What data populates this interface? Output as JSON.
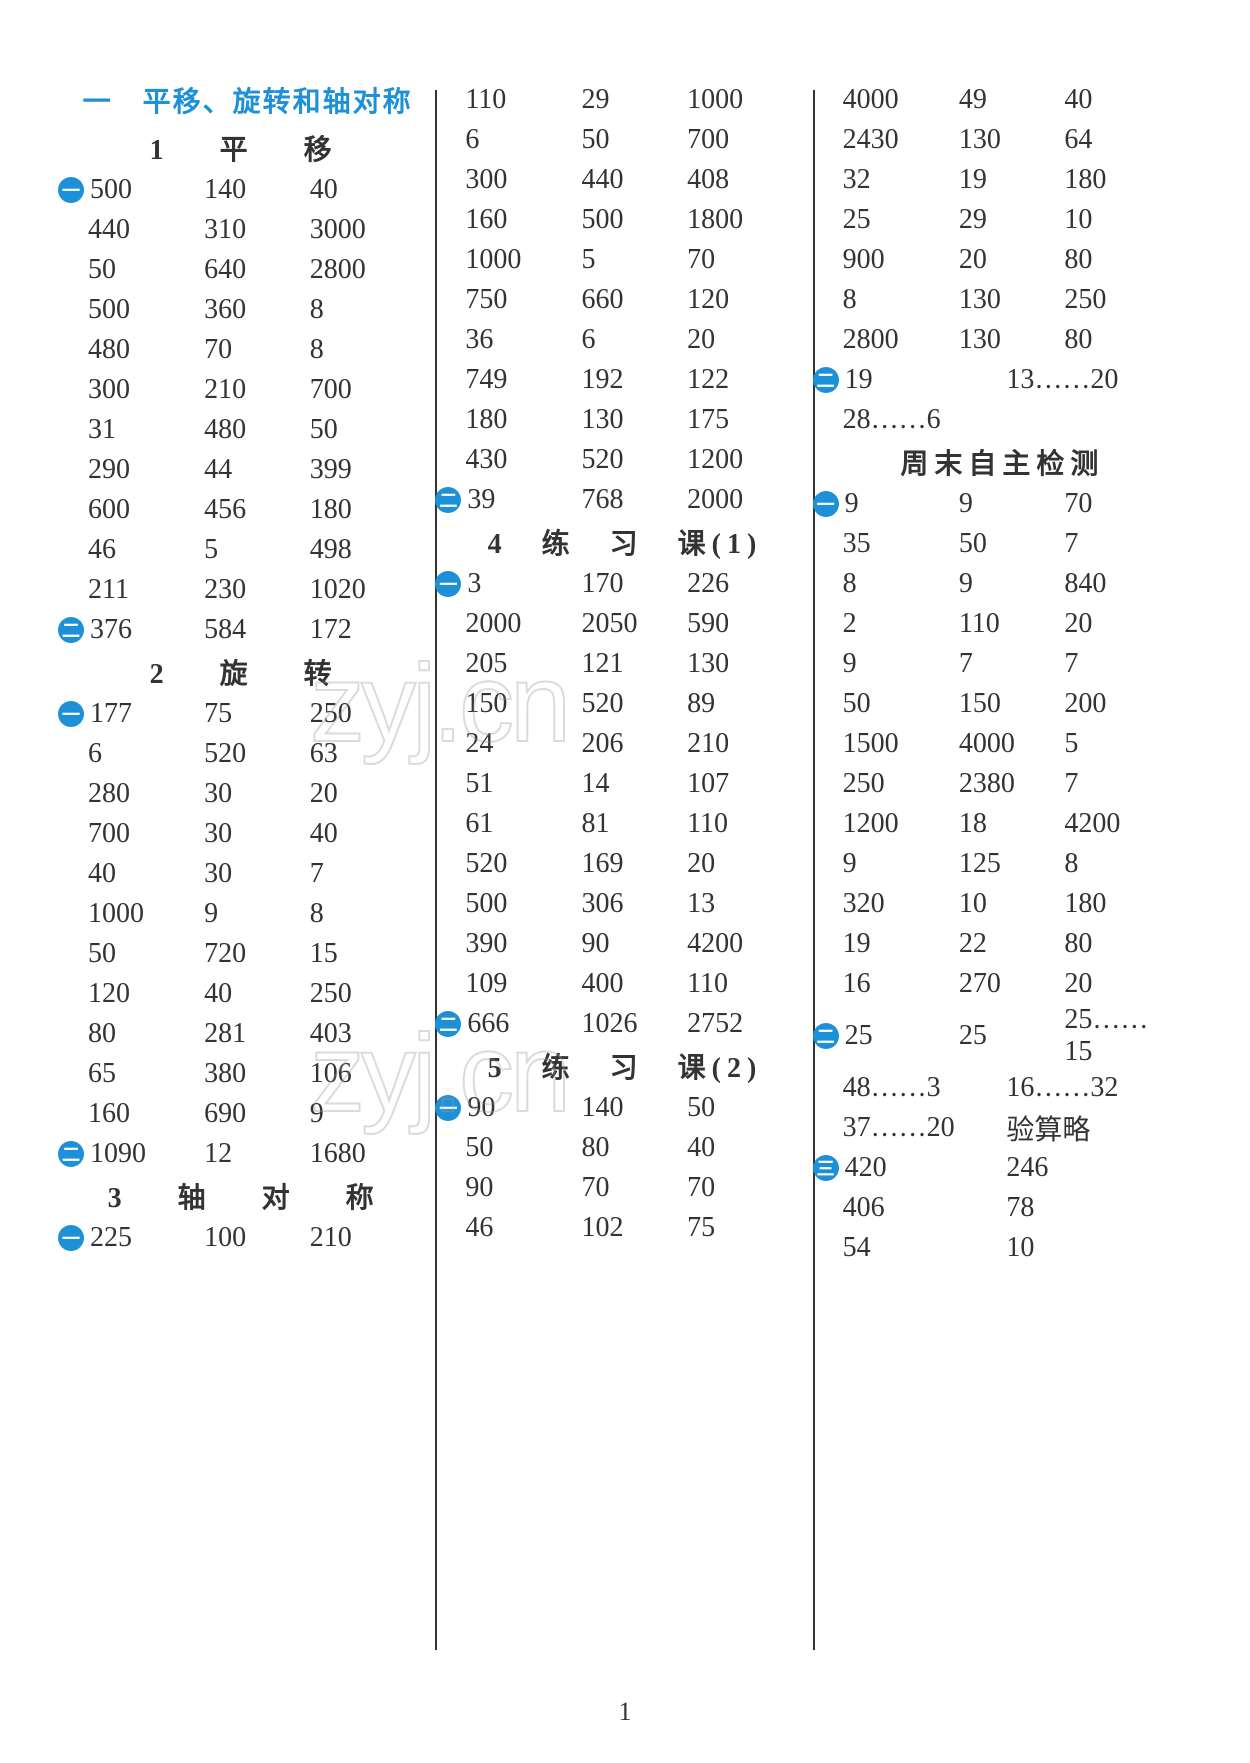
{
  "page_number": "1",
  "watermarks": [
    "zyj.cn",
    "zyj.cn"
  ],
  "columns": [
    {
      "items": [
        {
          "type": "chapter",
          "text": "一　平移、旋转和轴对称"
        },
        {
          "type": "section",
          "text": "1　平　移"
        },
        {
          "type": "row",
          "bullet": "一",
          "cells": [
            "500",
            "140",
            "40"
          ]
        },
        {
          "type": "row",
          "cells": [
            "440",
            "310",
            "3000"
          ]
        },
        {
          "type": "row",
          "cells": [
            "50",
            "640",
            "2800"
          ]
        },
        {
          "type": "row",
          "cells": [
            "500",
            "360",
            "8"
          ]
        },
        {
          "type": "row",
          "cells": [
            "480",
            "70",
            "8"
          ]
        },
        {
          "type": "row",
          "cells": [
            "300",
            "210",
            "700"
          ]
        },
        {
          "type": "row",
          "cells": [
            "31",
            "480",
            "50"
          ]
        },
        {
          "type": "row",
          "cells": [
            "290",
            "44",
            "399"
          ]
        },
        {
          "type": "row",
          "cells": [
            "600",
            "456",
            "180"
          ]
        },
        {
          "type": "row",
          "cells": [
            "46",
            "5",
            "498"
          ]
        },
        {
          "type": "row",
          "cells": [
            "211",
            "230",
            "1020"
          ]
        },
        {
          "type": "row",
          "bullet": "二",
          "cells": [
            "376",
            "584",
            "172"
          ]
        },
        {
          "type": "section",
          "text": "2　旋　转"
        },
        {
          "type": "row",
          "bullet": "一",
          "cells": [
            "177",
            "75",
            "250"
          ]
        },
        {
          "type": "row",
          "cells": [
            "6",
            "520",
            "63"
          ]
        },
        {
          "type": "row",
          "cells": [
            "280",
            "30",
            "20"
          ]
        },
        {
          "type": "row",
          "cells": [
            "700",
            "30",
            "40"
          ]
        },
        {
          "type": "row",
          "cells": [
            "40",
            "30",
            "7"
          ]
        },
        {
          "type": "row",
          "cells": [
            "1000",
            "9",
            "8"
          ]
        },
        {
          "type": "row",
          "cells": [
            "50",
            "720",
            "15"
          ]
        },
        {
          "type": "row",
          "cells": [
            "120",
            "40",
            "250"
          ]
        },
        {
          "type": "row",
          "cells": [
            "80",
            "281",
            "403"
          ]
        },
        {
          "type": "row",
          "cells": [
            "65",
            "380",
            "106"
          ]
        },
        {
          "type": "row",
          "cells": [
            "160",
            "690",
            "9"
          ]
        },
        {
          "type": "row",
          "bullet": "二",
          "cells": [
            "1090",
            "12",
            "1680"
          ]
        },
        {
          "type": "section",
          "text": "3　轴　对　称"
        },
        {
          "type": "row",
          "bullet": "一",
          "cells": [
            "225",
            "100",
            "210"
          ]
        }
      ]
    },
    {
      "items": [
        {
          "type": "row",
          "cells": [
            "110",
            "29",
            "1000"
          ]
        },
        {
          "type": "row",
          "cells": [
            "6",
            "50",
            "700"
          ]
        },
        {
          "type": "row",
          "cells": [
            "300",
            "440",
            "408"
          ]
        },
        {
          "type": "row",
          "cells": [
            "160",
            "500",
            "1800"
          ]
        },
        {
          "type": "row",
          "cells": [
            "1000",
            "5",
            "70"
          ]
        },
        {
          "type": "row",
          "cells": [
            "750",
            "660",
            "120"
          ]
        },
        {
          "type": "row",
          "cells": [
            "36",
            "6",
            "20"
          ]
        },
        {
          "type": "row",
          "cells": [
            "749",
            "192",
            "122"
          ]
        },
        {
          "type": "row",
          "cells": [
            "180",
            "130",
            "175"
          ]
        },
        {
          "type": "row",
          "cells": [
            "430",
            "520",
            "1200"
          ]
        },
        {
          "type": "row",
          "bullet": "二",
          "cells": [
            "39",
            "768",
            "2000"
          ]
        },
        {
          "type": "section-tight",
          "text": "4　练　习　课(1)"
        },
        {
          "type": "row",
          "bullet": "一",
          "cells": [
            "3",
            "170",
            "226"
          ]
        },
        {
          "type": "row",
          "cells": [
            "2000",
            "2050",
            "590"
          ]
        },
        {
          "type": "row",
          "cells": [
            "205",
            "121",
            "130"
          ]
        },
        {
          "type": "row",
          "cells": [
            "150",
            "520",
            "89"
          ]
        },
        {
          "type": "row",
          "cells": [
            "24",
            "206",
            "210"
          ]
        },
        {
          "type": "row",
          "cells": [
            "51",
            "14",
            "107"
          ]
        },
        {
          "type": "row",
          "cells": [
            "61",
            "81",
            "110"
          ]
        },
        {
          "type": "row",
          "cells": [
            "520",
            "169",
            "20"
          ]
        },
        {
          "type": "row",
          "cells": [
            "500",
            "306",
            "13"
          ]
        },
        {
          "type": "row",
          "cells": [
            "390",
            "90",
            "4200"
          ]
        },
        {
          "type": "row",
          "cells": [
            "109",
            "400",
            "110"
          ]
        },
        {
          "type": "row",
          "bullet": "二",
          "cells": [
            "666",
            "1026",
            "2752"
          ]
        },
        {
          "type": "section-tight",
          "text": "5　练　习　课(2)"
        },
        {
          "type": "row",
          "bullet": "一",
          "cells": [
            "90",
            "140",
            "50"
          ]
        },
        {
          "type": "row",
          "cells": [
            "50",
            "80",
            "40"
          ]
        },
        {
          "type": "row",
          "cells": [
            "90",
            "70",
            "70"
          ]
        },
        {
          "type": "row",
          "cells": [
            "46",
            "102",
            "75"
          ]
        }
      ]
    },
    {
      "items": [
        {
          "type": "row",
          "cells": [
            "4000",
            "49",
            "40"
          ]
        },
        {
          "type": "row",
          "cells": [
            "2430",
            "130",
            "64"
          ]
        },
        {
          "type": "row",
          "cells": [
            "32",
            "19",
            "180"
          ]
        },
        {
          "type": "row",
          "cells": [
            "25",
            "29",
            "10"
          ]
        },
        {
          "type": "row",
          "cells": [
            "900",
            "20",
            "80"
          ]
        },
        {
          "type": "row",
          "cells": [
            "8",
            "130",
            "250"
          ]
        },
        {
          "type": "row",
          "cells": [
            "2800",
            "130",
            "80"
          ]
        },
        {
          "type": "row2",
          "bullet": "二",
          "cells": [
            "19",
            "13……20"
          ]
        },
        {
          "type": "row2",
          "cells": [
            "28……6",
            ""
          ]
        },
        {
          "type": "section-tight",
          "text": "周末自主检测"
        },
        {
          "type": "row",
          "bullet": "一",
          "cells": [
            "9",
            "9",
            "70"
          ]
        },
        {
          "type": "row",
          "cells": [
            "35",
            "50",
            "7"
          ]
        },
        {
          "type": "row",
          "cells": [
            "8",
            "9",
            "840"
          ]
        },
        {
          "type": "row",
          "cells": [
            "2",
            "110",
            "20"
          ]
        },
        {
          "type": "row",
          "cells": [
            "9",
            "7",
            "7"
          ]
        },
        {
          "type": "row",
          "cells": [
            "50",
            "150",
            "200"
          ]
        },
        {
          "type": "row",
          "cells": [
            "1500",
            "4000",
            "5"
          ]
        },
        {
          "type": "row",
          "cells": [
            "250",
            "2380",
            "7"
          ]
        },
        {
          "type": "row",
          "cells": [
            "1200",
            "18",
            "4200"
          ]
        },
        {
          "type": "row",
          "cells": [
            "9",
            "125",
            "8"
          ]
        },
        {
          "type": "row",
          "cells": [
            "320",
            "10",
            "180"
          ]
        },
        {
          "type": "row",
          "cells": [
            "19",
            "22",
            "80"
          ]
        },
        {
          "type": "row",
          "cells": [
            "16",
            "270",
            "20"
          ]
        },
        {
          "type": "row",
          "bullet": "二",
          "cells": [
            "25",
            "25",
            "25……15"
          ]
        },
        {
          "type": "row2",
          "cells": [
            "48……3",
            "16……32"
          ]
        },
        {
          "type": "row2",
          "cells": [
            "37……20",
            "验算略"
          ]
        },
        {
          "type": "row2",
          "bullet": "三",
          "cells": [
            "420",
            "246"
          ]
        },
        {
          "type": "row2",
          "cells": [
            "406",
            "78"
          ]
        },
        {
          "type": "row2",
          "cells": [
            "54",
            "10"
          ]
        }
      ]
    }
  ]
}
